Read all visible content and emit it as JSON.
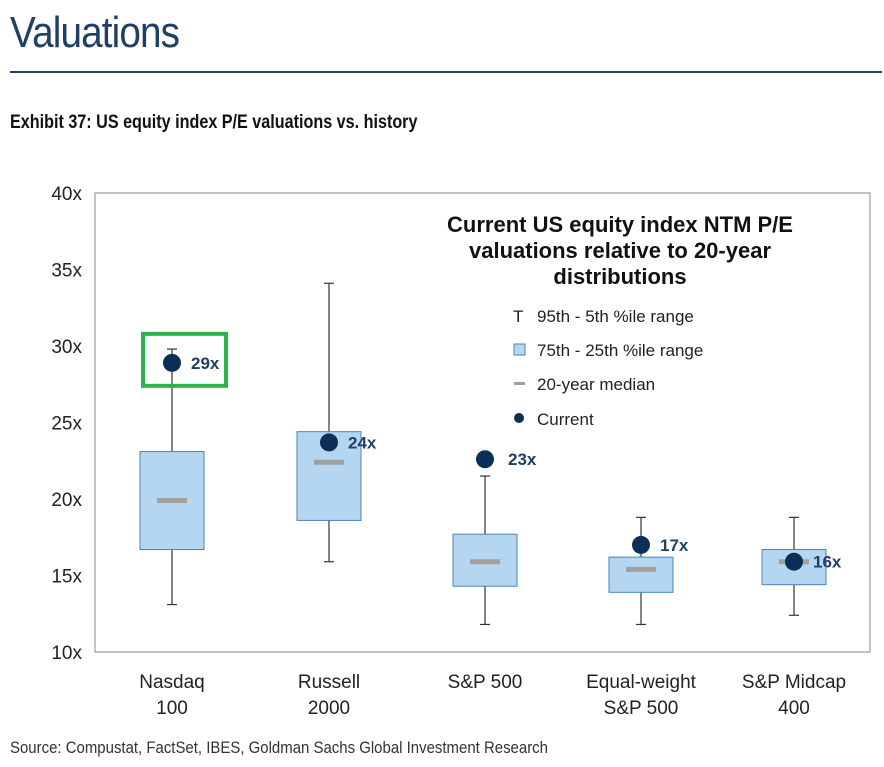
{
  "header": {
    "title": "Valuations",
    "exhibit": "Exhibit 37: US equity index P/E valuations vs. history",
    "source": "Source: Compustat, FactSet, IBES, Goldman Sachs Global Investment Research"
  },
  "colors": {
    "title": "#1f3f66",
    "box": "#b4d6f0",
    "box_border": "#4a84b8",
    "median": "#a0a0a0",
    "current": "#0b2f57",
    "highlight": "#2db34a"
  },
  "chart_data": {
    "type": "boxplot",
    "title": [
      "Current US equity index NTM P/E",
      "valuations relative to 20-year",
      "distributions"
    ],
    "ylim": [
      10,
      40
    ],
    "yticks": [
      10,
      15,
      20,
      25,
      30,
      35,
      40
    ],
    "ytick_labels": [
      "10x",
      "15x",
      "20x",
      "25x",
      "30x",
      "35x",
      "40x"
    ],
    "legend": [
      "95th - 5th %ile range",
      "75th - 25th %ile range",
      "20-year median",
      "Current"
    ],
    "legend_marker": "T",
    "legend_placement": "top-right",
    "categories": [
      {
        "line1": "Nasdaq",
        "line2": "100",
        "p5": 13.1,
        "p25": 16.7,
        "median": 19.9,
        "p75": 23.1,
        "p95": 29.8,
        "current": 28.9,
        "label": "29x",
        "highlighted": true
      },
      {
        "line1": "Russell",
        "line2": "2000",
        "p5": 15.9,
        "p25": 18.6,
        "median": 22.4,
        "p75": 24.4,
        "p95": 34.1,
        "current": 23.7,
        "label": "24x",
        "highlighted": false
      },
      {
        "line1": "S&P 500",
        "line2": "",
        "p5": 11.8,
        "p25": 14.3,
        "median": 15.9,
        "p75": 17.7,
        "p95": 21.5,
        "current": 22.6,
        "label": "23x",
        "highlighted": false
      },
      {
        "line1": "Equal-weight",
        "line2": "S&P 500",
        "p5": 11.8,
        "p25": 13.9,
        "median": 15.4,
        "p75": 16.2,
        "p95": 18.8,
        "current": 17.0,
        "label": "17x",
        "highlighted": false
      },
      {
        "line1": "S&P Midcap",
        "line2": "400",
        "p5": 12.4,
        "p25": 14.4,
        "median": 15.9,
        "p75": 16.7,
        "p95": 18.8,
        "current": 15.9,
        "label": "16x",
        "highlighted": false
      }
    ]
  }
}
